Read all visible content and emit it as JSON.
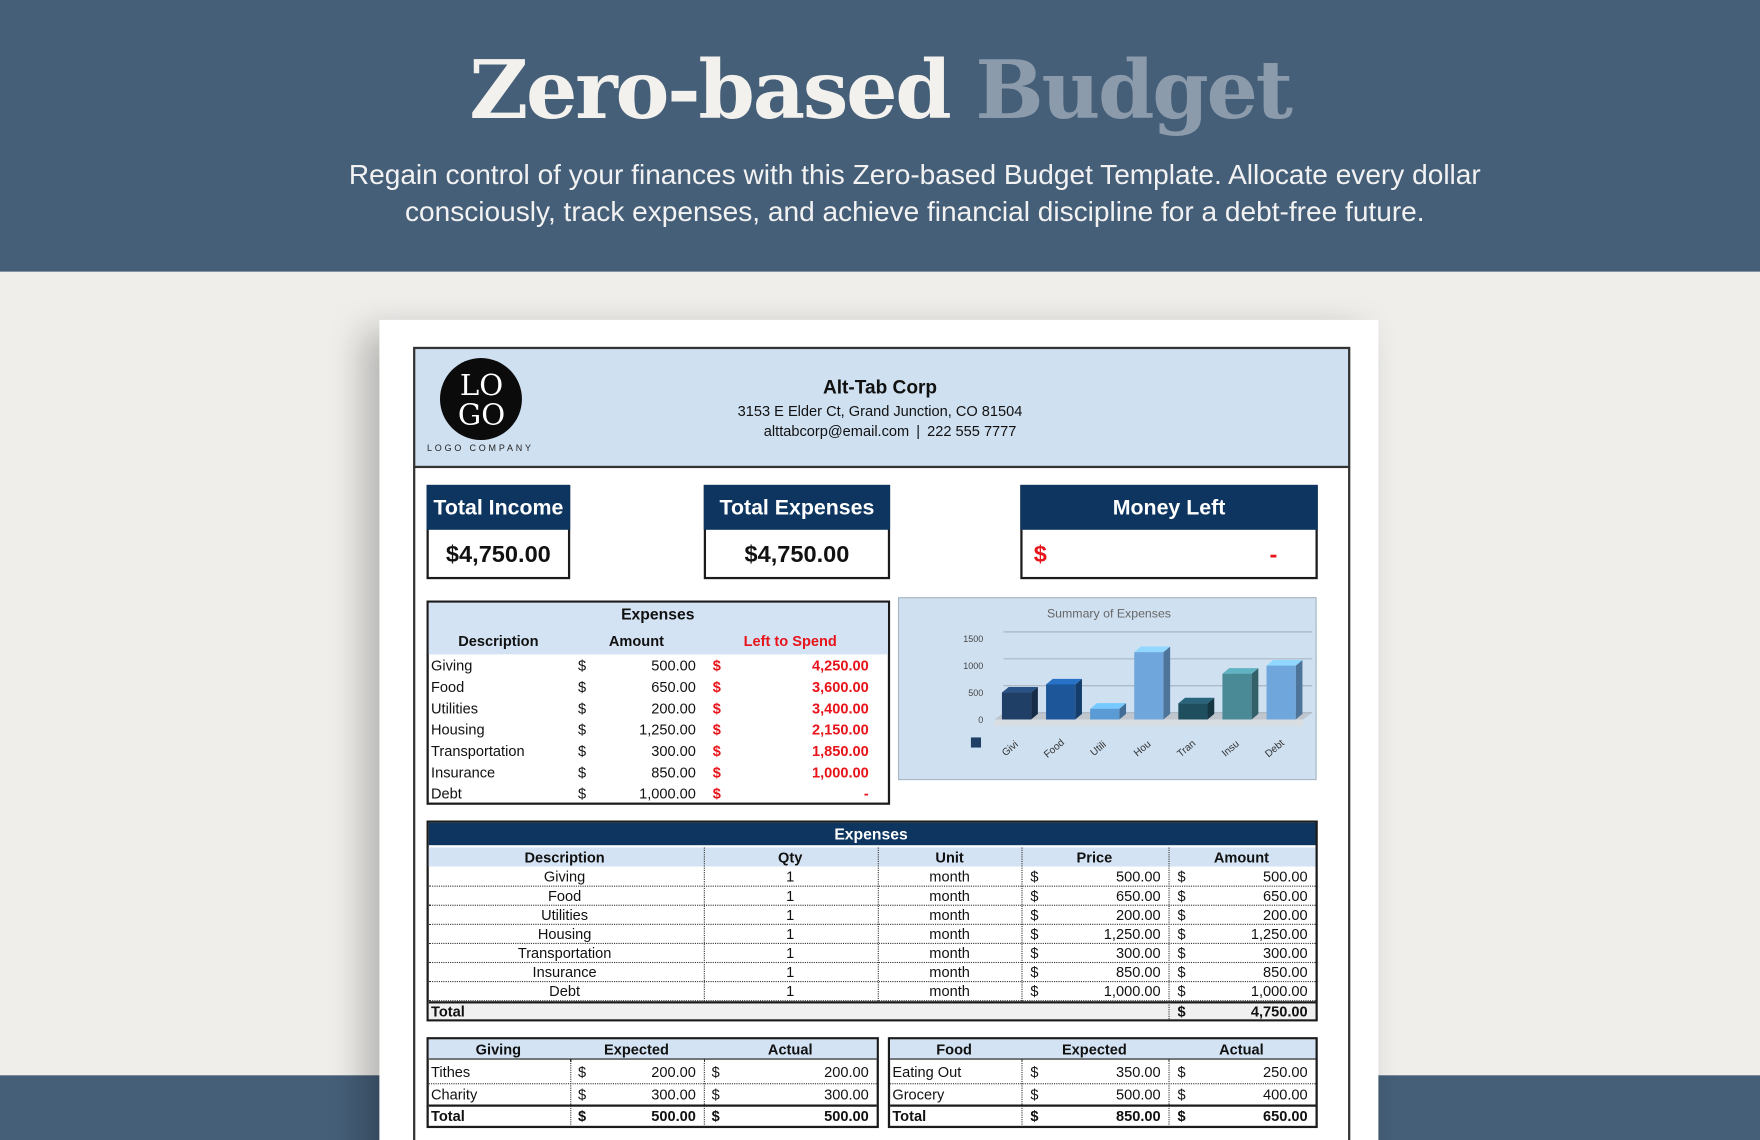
{
  "header": {
    "title_main": "Zero-based",
    "title_accent": "Budget",
    "description": "Regain control of your finances with this Zero-based Budget Template. Allocate every dollar consciously, track expenses, and achieve financial discipline for a debt-free future."
  },
  "company": {
    "logo_top": "LO",
    "logo_bottom": "GO",
    "logo_caption": "LOGO COMPANY",
    "name": "Alt-Tab Corp",
    "address": "3153 E Elder Ct, Grand Junction, CO 81504",
    "email": "alttabcorp@email.com",
    "separator": "|",
    "phone": "222 555 7777"
  },
  "totals": {
    "income": {
      "label": "Total Income",
      "value": "$4,750.00"
    },
    "expenses": {
      "label": "Total Expenses",
      "value": "$4,750.00"
    },
    "money_left": {
      "label": "Money Left",
      "currency": "$",
      "value": "-"
    }
  },
  "expense_summary": {
    "title": "Expenses",
    "columns": [
      "Description",
      "Amount",
      "Left to Spend"
    ],
    "rows": [
      [
        "Giving",
        "$",
        "500.00",
        "$",
        "4,250.00"
      ],
      [
        "Food",
        "$",
        "650.00",
        "$",
        "3,600.00"
      ],
      [
        "Utilities",
        "$",
        "200.00",
        "$",
        "3,400.00"
      ],
      [
        "Housing",
        "$",
        "1,250.00",
        "$",
        "2,150.00"
      ],
      [
        "Transportation",
        "$",
        "300.00",
        "$",
        "1,850.00"
      ],
      [
        "Insurance",
        "$",
        "850.00",
        "$",
        "1,000.00"
      ],
      [
        "Debt",
        "$",
        "1,000.00",
        "$",
        "-"
      ]
    ]
  },
  "chart_data": {
    "type": "bar",
    "title": "Summary of Expenses",
    "categories": [
      "Givi",
      "Food",
      "Utili",
      "Hou",
      "Tran",
      "Insu",
      "Debt"
    ],
    "values": [
      500,
      650,
      200,
      1250,
      300,
      850,
      1000
    ],
    "colors": [
      "#1f3f66",
      "#1e5799",
      "#5b9bd5",
      "#6fa6dc",
      "#1f4e5f",
      "#4a8a96",
      "#6fa6dc"
    ],
    "ylim": [
      0,
      1500
    ],
    "yticks": [
      0,
      500,
      1000,
      1500
    ],
    "grid": true
  },
  "expenses_table": {
    "title": "Expenses",
    "columns": [
      "Description",
      "Qty",
      "Unit",
      "Price",
      "Amount"
    ],
    "rows": [
      [
        "Giving",
        "1",
        "month",
        "$",
        "500.00",
        "$",
        "500.00"
      ],
      [
        "Food",
        "1",
        "month",
        "$",
        "650.00",
        "$",
        "650.00"
      ],
      [
        "Utilities",
        "1",
        "month",
        "$",
        "200.00",
        "$",
        "200.00"
      ],
      [
        "Housing",
        "1",
        "month",
        "$",
        "1,250.00",
        "$",
        "1,250.00"
      ],
      [
        "Transportation",
        "1",
        "month",
        "$",
        "300.00",
        "$",
        "300.00"
      ],
      [
        "Insurance",
        "1",
        "month",
        "$",
        "850.00",
        "$",
        "850.00"
      ],
      [
        "Debt",
        "1",
        "month",
        "$",
        "1,000.00",
        "$",
        "1,000.00"
      ]
    ],
    "total": [
      "Total",
      "$",
      "4,750.00"
    ]
  },
  "giving": {
    "columns": [
      "Giving",
      "Expected",
      "Actual"
    ],
    "rows": [
      [
        "Tithes",
        "$",
        "200.00",
        "$",
        "200.00"
      ],
      [
        "Charity",
        "$",
        "300.00",
        "$",
        "300.00"
      ],
      [
        "Total",
        "$",
        "500.00",
        "$",
        "500.00"
      ]
    ]
  },
  "food": {
    "columns": [
      "Food",
      "Expected",
      "Actual"
    ],
    "rows": [
      [
        "Eating Out",
        "$",
        "350.00",
        "$",
        "250.00"
      ],
      [
        "Grocery",
        "$",
        "500.00",
        "$",
        "400.00"
      ],
      [
        "Total",
        "$",
        "850.00",
        "$",
        "650.00"
      ]
    ]
  }
}
